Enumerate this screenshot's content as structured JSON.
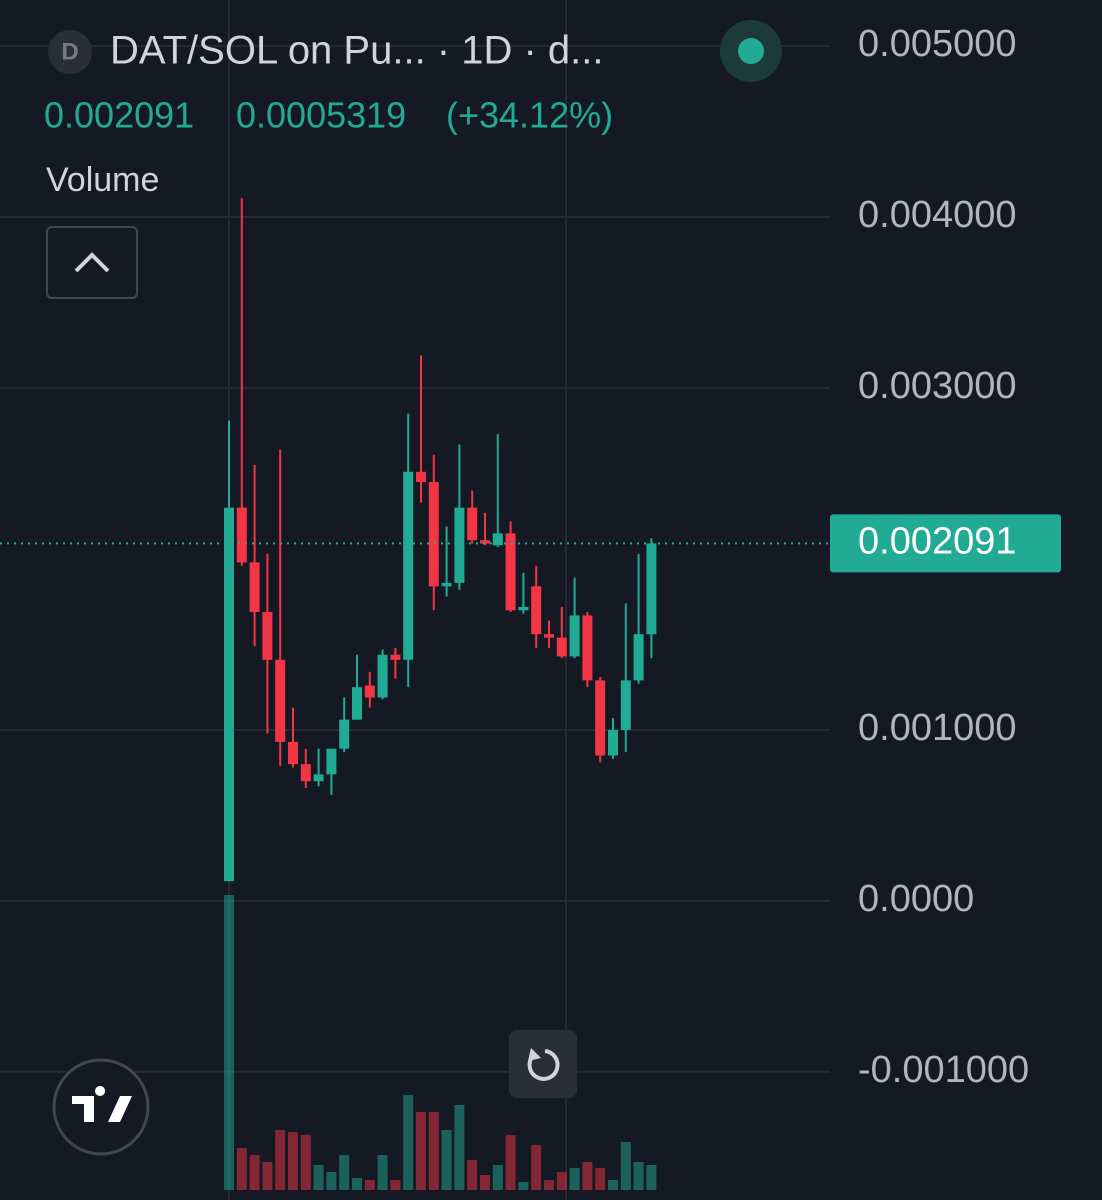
{
  "chart_data": {
    "type": "candlestick",
    "title": "DAT/SOL on Pu... · 1D · d...",
    "symbol_icon": "D",
    "price": "0.002091",
    "change": "0.0005319",
    "change_pct": "(+34.12%)",
    "volume_label": "Volume",
    "up_color": "#22ab94",
    "down_color": "#f23645",
    "open": [
      0.000115,
      0.0023,
      0.00198,
      0.00169,
      0.00141,
      0.00093,
      0.0008,
      0.0007,
      0.00074,
      0.00089,
      0.00106,
      0.00126,
      0.00119,
      0.00144,
      0.00141,
      0.00251,
      0.00245,
      0.00184,
      0.00186,
      0.0023,
      0.00211,
      0.00208,
      0.00215,
      0.0017,
      0.00184,
      0.00156,
      0.00154,
      0.00143,
      0.00167,
      0.00129,
      0.00085,
      0.001,
      0.00129,
      0.00156
    ],
    "high": [
      0.00281,
      0.00411,
      0.00255,
      0.00203,
      0.00264,
      0.00113,
      0.00089,
      0.00089,
      0.00089,
      0.00119,
      0.00144,
      0.00134,
      0.00147,
      0.00148,
      0.00285,
      0.00319,
      0.00261,
      0.00219,
      0.00267,
      0.0024,
      0.00227,
      0.00273,
      0.00222,
      0.00192,
      0.00196,
      0.00164,
      0.00172,
      0.00189,
      0.00169,
      0.00131,
      0.00107,
      0.00174,
      0.00203,
      0.00212
    ],
    "low": [
      0.000115,
      0.00196,
      0.00149,
      0.00098,
      0.00079,
      0.00078,
      0.00066,
      0.00067,
      0.00062,
      0.00087,
      0.00106,
      0.00113,
      0.00118,
      0.0013,
      0.00125,
      0.00233,
      0.0017,
      0.00178,
      0.00182,
      0.00209,
      0.00208,
      0.00207,
      0.00169,
      0.00168,
      0.00148,
      0.00148,
      0.00142,
      0.00142,
      0.00125,
      0.00081,
      0.00083,
      0.00087,
      0.00127,
      0.00142
    ],
    "close": [
      0.0023,
      0.00198,
      0.00169,
      0.00141,
      0.00093,
      0.0008,
      0.0007,
      0.00074,
      0.00089,
      0.00106,
      0.00125,
      0.00119,
      0.00144,
      0.00141,
      0.00251,
      0.00245,
      0.00184,
      0.00186,
      0.0023,
      0.00211,
      0.00209,
      0.00215,
      0.0017,
      0.00172,
      0.00156,
      0.00154,
      0.00143,
      0.00167,
      0.00129,
      0.00085,
      0.001,
      0.00129,
      0.00156,
      0.002091
    ],
    "volume": [
      295,
      42,
      35,
      28,
      60,
      58,
      55,
      25,
      18,
      35,
      12,
      10,
      35,
      10,
      95,
      78,
      78,
      60,
      85,
      30,
      15,
      25,
      55,
      8,
      45,
      10,
      18,
      22,
      28,
      22,
      10,
      48,
      28,
      25
    ],
    "ylim": [
      -0.00175,
      0.00527
    ],
    "yticks": [
      {
        "value": 0.005,
        "label": "0.005000"
      },
      {
        "value": 0.004,
        "label": "0.004000"
      },
      {
        "value": 0.003,
        "label": "0.003000"
      },
      {
        "value": 0.001,
        "label": "0.001000"
      },
      {
        "value": 0,
        "label": "0.0000"
      },
      {
        "value": -0.001,
        "label": "-0.001000"
      }
    ],
    "last_price": {
      "value": 0.002091,
      "label": "0.002091"
    },
    "grid": true
  }
}
